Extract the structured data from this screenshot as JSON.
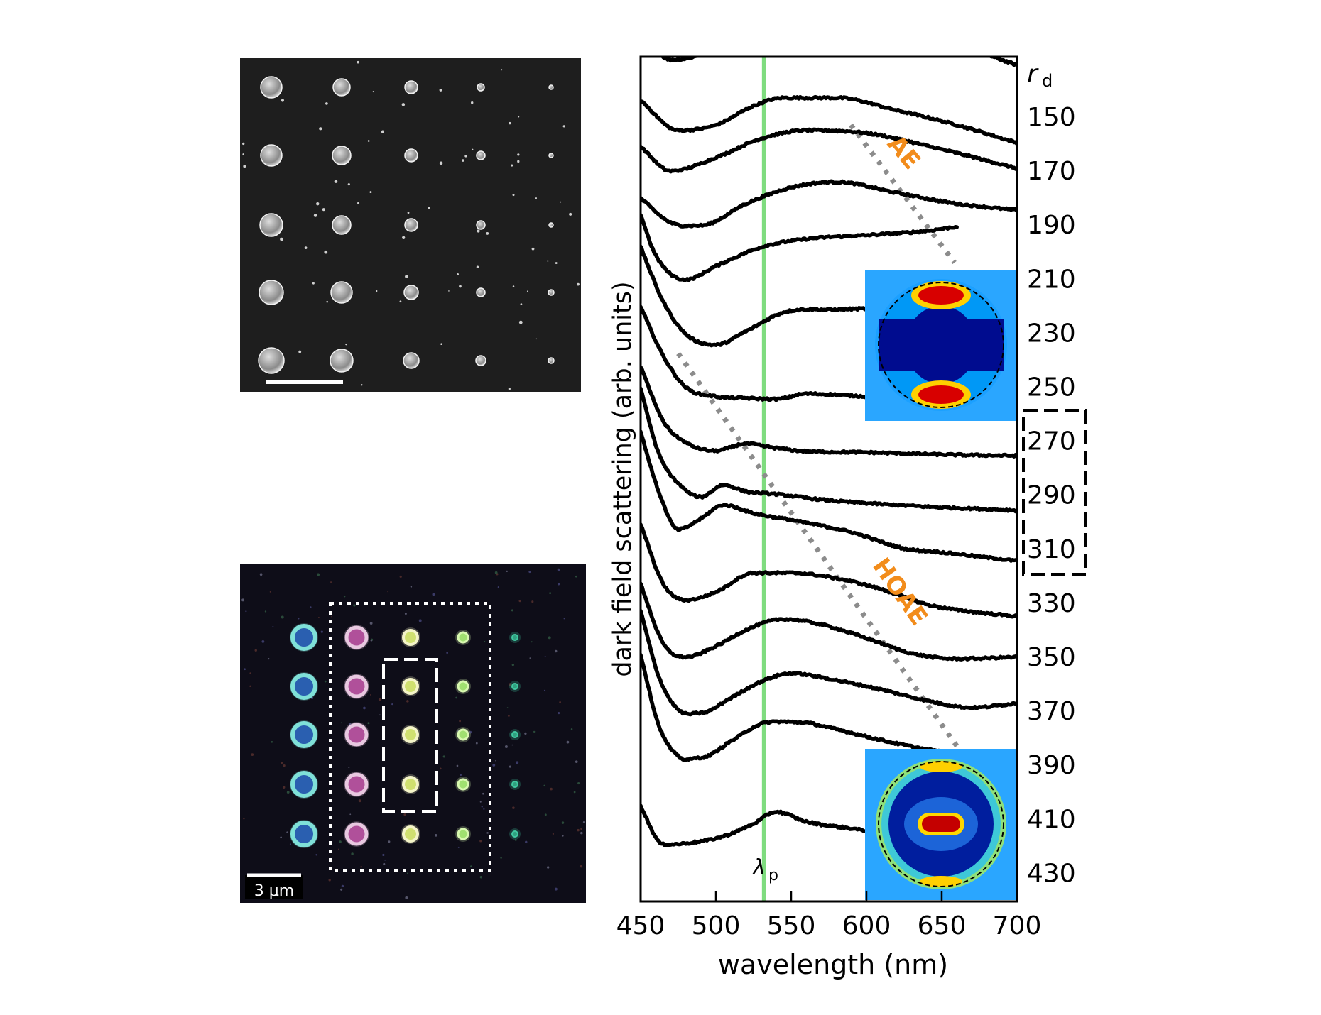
{
  "chart_data": [
    {
      "type": "image",
      "image_kind": "SEM micrograph of nanodisk array (grayscale)",
      "grid": {
        "rows": 5,
        "cols": 5
      },
      "scale_bar": {
        "label": "",
        "color": "#ffffff"
      }
    },
    {
      "type": "image",
      "image_kind": "dark-field optical micrograph of nanodisk array",
      "grid": {
        "rows": 5,
        "cols": 5
      },
      "scale_bar": {
        "label": "3 μm",
        "color": "#ffffff"
      },
      "highlight_boxes": [
        "dotted box: columns 2-4",
        "dashed box: column 3, rows 2-4"
      ]
    },
    {
      "type": "line",
      "xlabel": "wavelength (nm)",
      "ylabel": "dark field scattering (arb. units)",
      "xlim": [
        450,
        700
      ],
      "xticks": [
        450,
        500,
        550,
        600,
        650,
        700
      ],
      "right_axis_title": "r",
      "right_axis_title_sub": "d",
      "series_labels": [
        "150",
        "170",
        "190",
        "210",
        "230",
        "250",
        "270",
        "290",
        "310",
        "330",
        "350",
        "370",
        "390",
        "410",
        "430"
      ],
      "highlighted_labels": [
        "270",
        "290",
        "310"
      ],
      "pump_line": {
        "x": 532,
        "label": "λ",
        "label_sub": "p",
        "color": "#7fdc7f"
      },
      "annotations": [
        {
          "text": "AE",
          "color": "#f28c1b"
        },
        {
          "text": "HOAE",
          "color": "#f28c1b"
        }
      ],
      "series": [
        {
          "offset": 14,
          "values": [
            [
              450,
              1.3
            ],
            [
              470,
              0.75
            ],
            [
              490,
              0.85
            ],
            [
              520,
              1.35
            ],
            [
              545,
              1.82
            ],
            [
              575,
              1.95
            ],
            [
              610,
              1.65
            ],
            [
              650,
              1.15
            ],
            [
              700,
              0.65
            ]
          ]
        },
        {
          "offset": 13,
          "values": [
            [
              450,
              1.0
            ],
            [
              475,
              0.45
            ],
            [
              500,
              0.55
            ],
            [
              525,
              0.9
            ],
            [
              545,
              1.05
            ],
            [
              580,
              1.05
            ],
            [
              620,
              0.82
            ],
            [
              660,
              0.55
            ],
            [
              700,
              0.22
            ]
          ]
        },
        {
          "offset": 12,
          "values": [
            [
              450,
              1.15
            ],
            [
              470,
              0.7
            ],
            [
              500,
              0.95
            ],
            [
              530,
              1.3
            ],
            [
              560,
              1.45
            ],
            [
              600,
              1.4
            ],
            [
              650,
              1.1
            ],
            [
              700,
              0.75
            ]
          ]
        },
        {
          "offset": 11,
          "values": [
            [
              450,
              1.2
            ],
            [
              470,
              0.75
            ],
            [
              490,
              0.7
            ],
            [
              520,
              1.1
            ],
            [
              550,
              1.4
            ],
            [
              580,
              1.5
            ],
            [
              620,
              1.3
            ],
            [
              660,
              1.1
            ],
            [
              700,
              0.98
            ]
          ]
        },
        {
          "offset": 10,
          "values": [
            [
              450,
              1.9
            ],
            [
              460,
              1.15
            ],
            [
              480,
              0.7
            ],
            [
              500,
              0.95
            ],
            [
              530,
              1.3
            ],
            [
              560,
              1.45
            ],
            [
              600,
              1.52
            ],
            [
              640,
              1.6
            ],
            [
              660,
              1.68
            ]
          ]
        },
        {
          "offset": 9,
          "values": [
            [
              450,
              2.3
            ],
            [
              465,
              1.3
            ],
            [
              480,
              0.7
            ],
            [
              500,
              0.5
            ],
            [
              520,
              0.75
            ],
            [
              545,
              1.1
            ],
            [
              580,
              1.15
            ],
            [
              620,
              1.18
            ],
            [
              660,
              1.2
            ]
          ]
        },
        {
          "offset": 8,
          "values": [
            [
              450,
              2.2
            ],
            [
              465,
              1.3
            ],
            [
              480,
              0.72
            ],
            [
              500,
              0.55
            ],
            [
              520,
              0.52
            ],
            [
              540,
              0.5
            ],
            [
              560,
              0.6
            ],
            [
              600,
              0.55
            ],
            [
              650,
              0.48
            ],
            [
              700,
              0.48
            ]
          ]
        },
        {
          "offset": 7,
          "values": [
            [
              450,
              2.1
            ],
            [
              465,
              1.1
            ],
            [
              480,
              0.7
            ],
            [
              500,
              0.55
            ],
            [
              520,
              0.68
            ],
            [
              535,
              0.62
            ],
            [
              555,
              0.55
            ],
            [
              600,
              0.52
            ],
            [
              650,
              0.48
            ],
            [
              700,
              0.46
            ]
          ]
        },
        {
          "offset": 6,
          "values": [
            [
              450,
              2.7
            ],
            [
              462,
              1.5
            ],
            [
              475,
              0.95
            ],
            [
              490,
              0.7
            ],
            [
              505,
              0.92
            ],
            [
              520,
              0.8
            ],
            [
              540,
              0.75
            ],
            [
              570,
              0.65
            ],
            [
              620,
              0.55
            ],
            [
              700,
              0.45
            ]
          ]
        },
        {
          "offset": 5,
          "values": [
            [
              450,
              2.9
            ],
            [
              462,
              1.8
            ],
            [
              475,
              1.1
            ],
            [
              490,
              1.3
            ],
            [
              505,
              1.55
            ],
            [
              525,
              1.4
            ],
            [
              555,
              1.25
            ],
            [
              590,
              1.05
            ],
            [
              625,
              0.75
            ],
            [
              650,
              0.68
            ],
            [
              700,
              0.52
            ]
          ]
        },
        {
          "offset": 4,
          "values": [
            [
              450,
              2.2
            ],
            [
              465,
              1.1
            ],
            [
              480,
              0.8
            ],
            [
              500,
              0.95
            ],
            [
              525,
              1.3
            ],
            [
              550,
              1.3
            ],
            [
              580,
              1.2
            ],
            [
              610,
              1.0
            ],
            [
              640,
              0.72
            ],
            [
              660,
              0.62
            ],
            [
              700,
              0.5
            ]
          ]
        },
        {
          "offset": 3,
          "values": [
            [
              450,
              2.1
            ],
            [
              465,
              1.0
            ],
            [
              480,
              0.75
            ],
            [
              500,
              0.95
            ],
            [
              520,
              1.25
            ],
            [
              545,
              1.45
            ],
            [
              570,
              1.35
            ],
            [
              600,
              1.1
            ],
            [
              630,
              0.82
            ],
            [
              660,
              0.72
            ],
            [
              700,
              0.75
            ]
          ]
        },
        {
          "offset": 2,
          "values": [
            [
              450,
              2.6
            ],
            [
              462,
              1.4
            ],
            [
              475,
              0.78
            ],
            [
              490,
              0.72
            ],
            [
              510,
              1.0
            ],
            [
              530,
              1.3
            ],
            [
              550,
              1.45
            ],
            [
              575,
              1.35
            ],
            [
              610,
              1.15
            ],
            [
              640,
              0.95
            ],
            [
              670,
              0.82
            ],
            [
              700,
              0.9
            ]
          ]
        },
        {
          "offset": 1,
          "values": [
            [
              450,
              2.8
            ],
            [
              462,
              1.5
            ],
            [
              475,
              0.92
            ],
            [
              490,
              0.9
            ],
            [
              510,
              1.2
            ],
            [
              530,
              1.52
            ],
            [
              555,
              1.55
            ],
            [
              580,
              1.42
            ],
            [
              610,
              1.22
            ],
            [
              640,
              1.05
            ],
            [
              670,
              0.92
            ]
          ]
        },
        {
          "offset": 0,
          "values": [
            [
              450,
              1.0
            ],
            [
              465,
              0.3
            ],
            [
              480,
              0.32
            ],
            [
              505,
              0.45
            ],
            [
              525,
              0.68
            ],
            [
              540,
              0.9
            ],
            [
              560,
              0.72
            ],
            [
              600,
              0.55
            ],
            [
              640,
              0.3
            ],
            [
              660,
              0.2
            ]
          ]
        }
      ]
    }
  ]
}
